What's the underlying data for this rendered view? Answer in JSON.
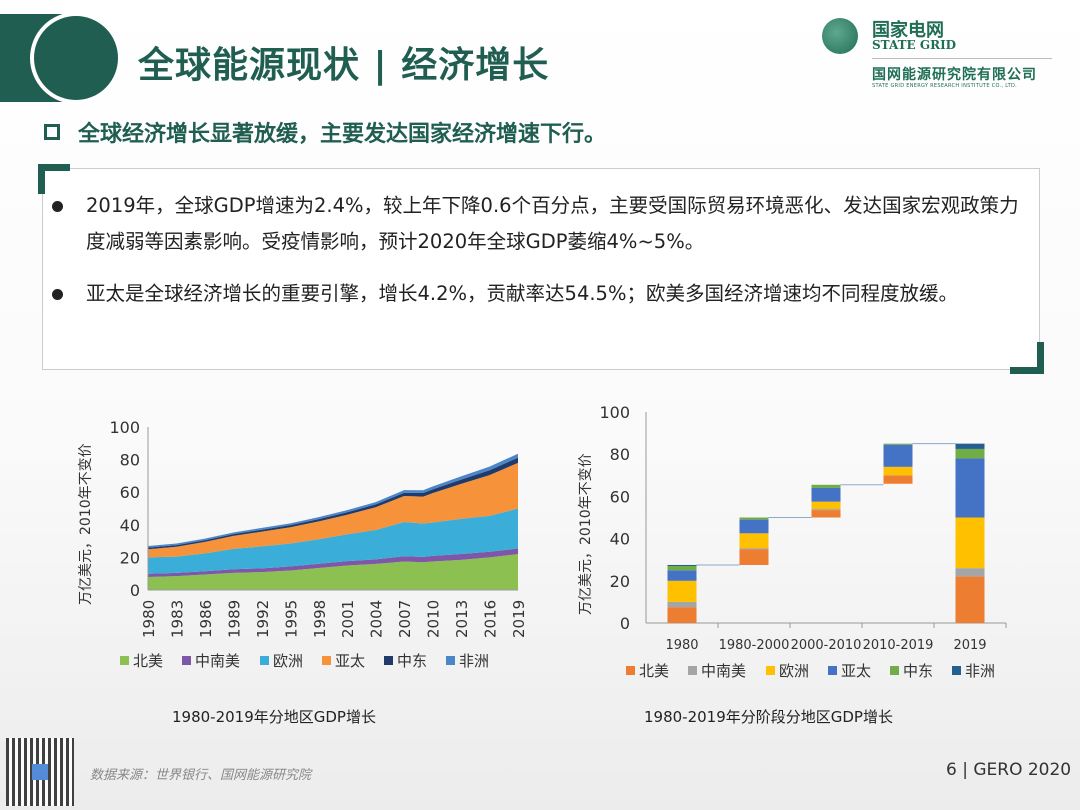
{
  "header": {
    "title": "全球能源现状 | 经济增长"
  },
  "logo": {
    "cn": "国家电网",
    "en": "STATE GRID",
    "org_cn": "国网能源研究院有限公司",
    "org_en": "STATE GRID ENERGY RESEARCH INSTITUTE CO., LTD."
  },
  "subtitle": "全球经济增长显著放缓，主要发达国家经济增速下行。",
  "bullets": [
    "2019年，全球GDP增速为2.4%，较上年下降0.6个百分点，主要受国际贸易环境恶化、发达国家宏观政策力度减弱等因素影响。受疫情影响，预计2020年全球GDP萎缩4%~5%。",
    "亚太是全球经济增长的重要引擎，增长4.2%，贡献率达54.5%；欧美多国经济增速均不同程度放缓。"
  ],
  "footer": {
    "source": "数据来源：世界银行、国网能源研究院",
    "page": "6 | GERO 2020"
  },
  "chart_data": [
    {
      "type": "area",
      "stacked": true,
      "caption": "1980-2019年分地区GDP增长",
      "ylabel": "万亿美元，2010年不变价",
      "ylim": [
        0,
        100
      ],
      "yticks": [
        "0",
        "20",
        "40",
        "60",
        "80",
        "100"
      ],
      "xticks": [
        "1980",
        "1983",
        "1986",
        "1989",
        "1992",
        "1995",
        "1998",
        "2001",
        "2004",
        "2007",
        "2010",
        "2013",
        "2016",
        "2019"
      ],
      "x": [
        1980,
        1983,
        1986,
        1989,
        1992,
        1995,
        1998,
        2001,
        2004,
        2007,
        2009,
        2010,
        2013,
        2016,
        2019
      ],
      "legend_position": "bottom",
      "series": [
        {
          "name": "北美",
          "color": "#8cc152",
          "values": [
            8,
            8.5,
            9.5,
            10.5,
            11,
            12,
            13.5,
            15,
            16,
            17.5,
            17,
            17.5,
            18.5,
            20,
            22
          ]
        },
        {
          "name": "中南美",
          "color": "#7e57a8",
          "values": [
            2,
            2,
            2,
            2.2,
            2.3,
            2.5,
            2.6,
            2.7,
            2.8,
            3.2,
            3.3,
            3.4,
            3.6,
            3.5,
            3.5
          ]
        },
        {
          "name": "欧洲",
          "color": "#3aaed8",
          "values": [
            10,
            10,
            11,
            12.5,
            13.5,
            14,
            15,
            16.5,
            18,
            21,
            20.5,
            20.5,
            21.5,
            22,
            24.5
          ]
        },
        {
          "name": "亚太",
          "color": "#f6923a",
          "values": [
            5,
            6,
            7,
            8,
            9,
            10,
            11,
            12,
            14,
            16,
            16.5,
            18,
            21.5,
            25,
            28
          ]
        },
        {
          "name": "中东",
          "color": "#1f3a6b",
          "values": [
            1,
            1,
            1,
            1.1,
            1.2,
            1.3,
            1.4,
            1.5,
            1.7,
            2,
            2.2,
            2.3,
            2.6,
            3,
            3.2
          ]
        },
        {
          "name": "非洲",
          "color": "#4a86c8",
          "values": [
            1,
            1,
            1,
            1,
            1.1,
            1.1,
            1.2,
            1.3,
            1.4,
            1.6,
            1.7,
            1.8,
            2,
            2.2,
            2.4
          ]
        }
      ]
    },
    {
      "type": "bar",
      "variant": "waterfall",
      "caption": "1980-2019年分阶段分地区GDP增长",
      "ylabel": "万亿美元，2010年不变价",
      "ylim": [
        0,
        100
      ],
      "yticks": [
        "0",
        "20",
        "40",
        "60",
        "80",
        "100"
      ],
      "categories": [
        "1980",
        "1980-2000",
        "2000-2010",
        "2010-2019",
        "2019"
      ],
      "bases": [
        0,
        27.5,
        50,
        66,
        0
      ],
      "legend_position": "bottom",
      "series": [
        {
          "name": "北美",
          "color": "#ed7d31",
          "values": [
            7.5,
            7.5,
            3.5,
            4,
            22
          ]
        },
        {
          "name": "中南美",
          "color": "#a5a5a5",
          "values": [
            2.5,
            0.5,
            0.5,
            0,
            4
          ]
        },
        {
          "name": "欧洲",
          "color": "#ffc000",
          "values": [
            10,
            7,
            3.5,
            4,
            24
          ]
        },
        {
          "name": "亚太",
          "color": "#4472c4",
          "values": [
            5,
            6.5,
            6.5,
            10.5,
            28
          ]
        },
        {
          "name": "中东",
          "color": "#70ad47",
          "values": [
            2,
            1,
            1.5,
            0.5,
            4.5
          ]
        },
        {
          "name": "非洲",
          "color": "#255e91",
          "values": [
            0.5,
            0,
            0,
            0,
            2.5
          ]
        }
      ]
    }
  ]
}
